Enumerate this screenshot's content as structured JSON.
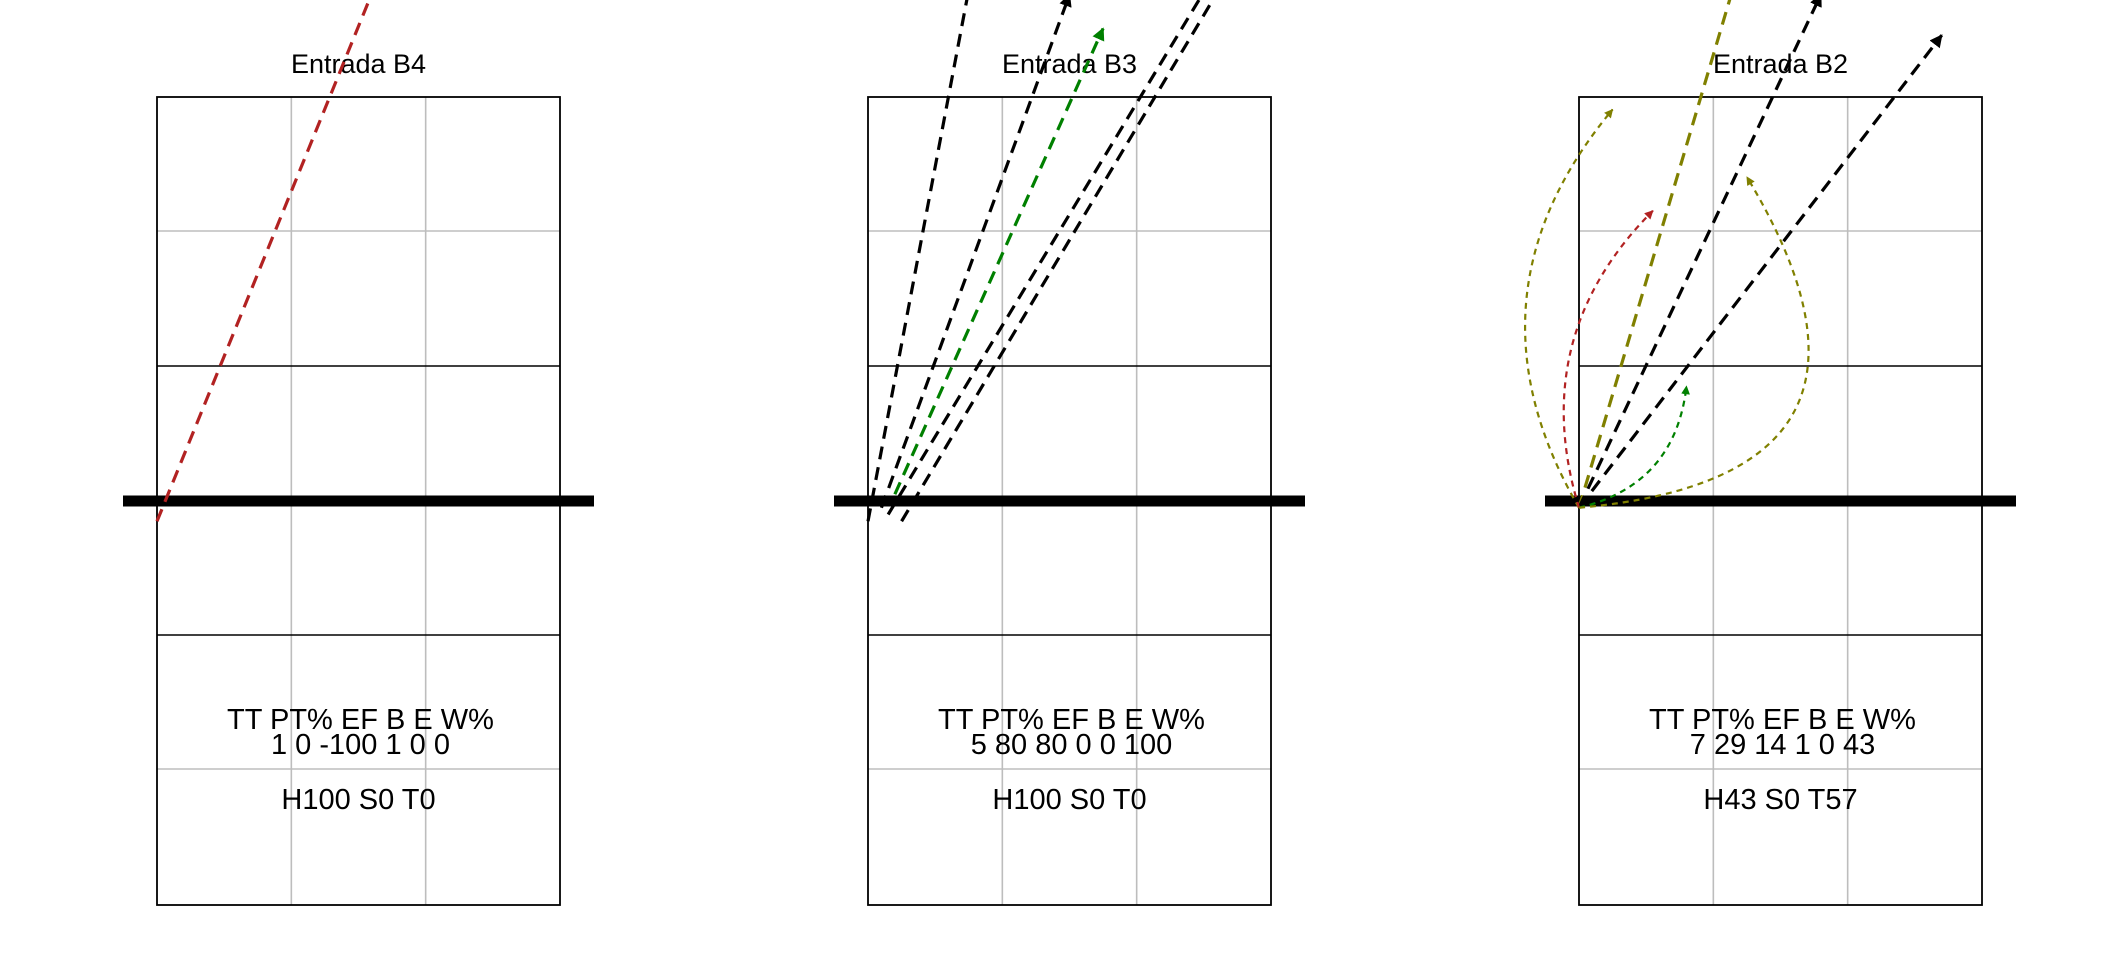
{
  "chart_data": [
    {
      "type": "other",
      "title": "Entrada B4",
      "stats": {
        "headers": [
          "TT",
          "PT%",
          "EF",
          "B",
          "E",
          "W%"
        ],
        "values": [
          "1",
          "0",
          "-100",
          "1",
          "0",
          "0"
        ]
      },
      "footer": "H100 S0 T0",
      "arrows": [
        {
          "x1": 0.0,
          "y1": 3.2,
          "x2": 2.25,
          "y2": 8.7,
          "color": "#b22222",
          "curve": 0
        }
      ]
    },
    {
      "type": "other",
      "title": "Entrada B3",
      "stats": {
        "headers": [
          "TT",
          "PT%",
          "EF",
          "B",
          "E",
          "W%"
        ],
        "values": [
          "5",
          "80",
          "80",
          "0",
          "0",
          "100"
        ]
      },
      "footer": "H100 S0 T0",
      "arrows": [
        {
          "x1": 0.0,
          "y1": 3.2,
          "x2": 0.8,
          "y2": 7.4,
          "color": "#000000",
          "curve": 0
        },
        {
          "x1": 0.1,
          "y1": 3.3,
          "x2": 1.5,
          "y2": 7.1,
          "color": "#000000",
          "curve": 0
        },
        {
          "x1": 0.2,
          "y1": 3.4,
          "x2": 1.75,
          "y2": 6.85,
          "color": "#008000",
          "curve": 0
        },
        {
          "x1": 0.15,
          "y1": 3.25,
          "x2": 2.7,
          "y2": 7.45,
          "color": "#000000",
          "curve": 0
        },
        {
          "x1": 0.25,
          "y1": 3.2,
          "x2": 2.8,
          "y2": 7.45,
          "color": "#000000",
          "curve": 0
        }
      ]
    },
    {
      "type": "other",
      "title": "Entrada B2",
      "stats": {
        "headers": [
          "TT",
          "PT%",
          "EF",
          "B",
          "E",
          "W%"
        ],
        "values": [
          "7",
          "29",
          "14",
          "1",
          "0",
          "43"
        ]
      },
      "footer": "H43 S0 T57",
      "arrows": [
        {
          "x1": 0.0,
          "y1": 3.3,
          "x2": 1.55,
          "y2": 8.5,
          "color": "#808000",
          "curve": 0
        },
        {
          "x1": 0.0,
          "y1": 3.3,
          "x2": 1.8,
          "y2": 7.1,
          "color": "#000000",
          "curve": 0
        },
        {
          "x1": 0.0,
          "y1": 3.3,
          "x2": 2.7,
          "y2": 6.8,
          "color": "#000000",
          "curve": 0
        },
        {
          "x1": 0.0,
          "y1": 3.3,
          "x2": 0.25,
          "y2": 6.25,
          "color": "#808000",
          "curve": -0.35
        },
        {
          "x1": 0.0,
          "y1": 3.3,
          "x2": 0.55,
          "y2": 5.5,
          "color": "#b22222",
          "curve": -0.3
        },
        {
          "x1": 0.0,
          "y1": 3.3,
          "x2": 0.8,
          "y2": 4.2,
          "color": "#008000",
          "curve": 0.35
        },
        {
          "x1": 0.0,
          "y1": 3.3,
          "x2": 1.25,
          "y2": 5.75,
          "color": "#808000",
          "curve": 0.8
        }
      ]
    }
  ]
}
